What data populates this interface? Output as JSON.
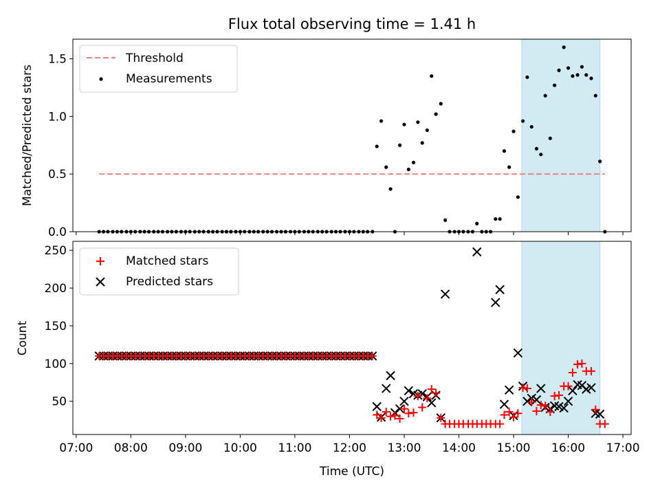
{
  "chart_data": [
    {
      "panel": "top",
      "type": "scatter",
      "title": "Flux total observing time = 1.41 h",
      "ylabel": "Matched/Predicted stars",
      "xlabel": "",
      "xlim": [
        6.94,
        17.15
      ],
      "ylim": [
        0,
        1.67
      ],
      "yticks": [
        0.0,
        0.5,
        1.0,
        1.5
      ],
      "ytick_labels": [
        "0.0",
        "0.5",
        "1.0",
        "1.5"
      ],
      "shaded_interval": [
        15.15,
        16.58
      ],
      "shade_color": "#add8e6",
      "legend": {
        "placement": "top-left",
        "entries": [
          {
            "label": "Threshold",
            "style": "dashed-line",
            "color": "#f08080"
          },
          {
            "label": "Measurements",
            "style": "dot",
            "color": "#000000"
          }
        ]
      },
      "threshold": {
        "name": "Threshold",
        "y": 0.5,
        "x_range": [
          7.42,
          16.67
        ],
        "color": "#f08080"
      },
      "series": [
        {
          "name": "Measurements",
          "marker": "dot",
          "color": "#000000",
          "points": [
            [
              7.42,
              0
            ],
            [
              7.5,
              0
            ],
            [
              7.58,
              0
            ],
            [
              7.67,
              0
            ],
            [
              7.75,
              0
            ],
            [
              7.83,
              0
            ],
            [
              7.92,
              0
            ],
            [
              8.0,
              0
            ],
            [
              8.08,
              0
            ],
            [
              8.17,
              0
            ],
            [
              8.25,
              0
            ],
            [
              8.33,
              0
            ],
            [
              8.42,
              0
            ],
            [
              8.5,
              0
            ],
            [
              8.58,
              0
            ],
            [
              8.67,
              0
            ],
            [
              8.75,
              0
            ],
            [
              8.83,
              0
            ],
            [
              8.92,
              0
            ],
            [
              9.0,
              0
            ],
            [
              9.08,
              0
            ],
            [
              9.17,
              0
            ],
            [
              9.25,
              0
            ],
            [
              9.33,
              0
            ],
            [
              9.42,
              0
            ],
            [
              9.5,
              0
            ],
            [
              9.58,
              0
            ],
            [
              9.67,
              0
            ],
            [
              9.75,
              0
            ],
            [
              9.83,
              0
            ],
            [
              9.92,
              0
            ],
            [
              10.0,
              0
            ],
            [
              10.08,
              0
            ],
            [
              10.17,
              0
            ],
            [
              10.25,
              0
            ],
            [
              10.33,
              0
            ],
            [
              10.42,
              0
            ],
            [
              10.5,
              0
            ],
            [
              10.58,
              0
            ],
            [
              10.67,
              0
            ],
            [
              10.75,
              0
            ],
            [
              10.83,
              0
            ],
            [
              10.92,
              0
            ],
            [
              11.0,
              0
            ],
            [
              11.08,
              0
            ],
            [
              11.17,
              0
            ],
            [
              11.25,
              0
            ],
            [
              11.33,
              0
            ],
            [
              11.42,
              0
            ],
            [
              11.5,
              0
            ],
            [
              11.58,
              0
            ],
            [
              11.67,
              0
            ],
            [
              11.75,
              0
            ],
            [
              11.83,
              0
            ],
            [
              11.92,
              0
            ],
            [
              12.0,
              0
            ],
            [
              12.08,
              0
            ],
            [
              12.17,
              0
            ],
            [
              12.25,
              0
            ],
            [
              12.33,
              0
            ],
            [
              12.42,
              0
            ],
            [
              12.5,
              0.74
            ],
            [
              12.58,
              0.96
            ],
            [
              12.67,
              0.56
            ],
            [
              12.75,
              0.37
            ],
            [
              12.83,
              0.0
            ],
            [
              12.92,
              0.75
            ],
            [
              13.0,
              0.93
            ],
            [
              13.08,
              0.54
            ],
            [
              13.17,
              0.6
            ],
            [
              13.25,
              0.95
            ],
            [
              13.33,
              0.77
            ],
            [
              13.42,
              0.88
            ],
            [
              13.5,
              1.35
            ],
            [
              13.58,
              1.02
            ],
            [
              13.67,
              1.11
            ],
            [
              13.75,
              0.1
            ],
            [
              13.83,
              0.0
            ],
            [
              13.92,
              0.0
            ],
            [
              14.0,
              0.0
            ],
            [
              14.08,
              0.0
            ],
            [
              14.17,
              0.0
            ],
            [
              14.25,
              0.0
            ],
            [
              14.33,
              0.07
            ],
            [
              14.42,
              0.0
            ],
            [
              14.5,
              0.0
            ],
            [
              14.58,
              0.0
            ],
            [
              14.67,
              0.11
            ],
            [
              14.75,
              0.11
            ],
            [
              14.83,
              0.7
            ],
            [
              14.92,
              0.56
            ],
            [
              15.0,
              0.87
            ],
            [
              15.08,
              0.3
            ],
            [
              15.17,
              0.96
            ],
            [
              15.25,
              1.34
            ],
            [
              15.33,
              0.91
            ],
            [
              15.42,
              0.72
            ],
            [
              15.5,
              0.67
            ],
            [
              15.58,
              1.18
            ],
            [
              15.67,
              0.81
            ],
            [
              15.75,
              1.27
            ],
            [
              15.83,
              1.4
            ],
            [
              15.92,
              1.6
            ],
            [
              16.0,
              1.42
            ],
            [
              16.08,
              1.35
            ],
            [
              16.17,
              1.36
            ],
            [
              16.25,
              1.43
            ],
            [
              16.33,
              1.36
            ],
            [
              16.42,
              1.33
            ],
            [
              16.5,
              1.18
            ],
            [
              16.58,
              0.61
            ],
            [
              16.67,
              0.0
            ]
          ]
        }
      ]
    },
    {
      "panel": "bottom",
      "type": "scatter",
      "title": "",
      "xlabel": "Time (UTC)",
      "ylabel": "Count",
      "xlim": [
        6.94,
        17.15
      ],
      "ylim": [
        6,
        262
      ],
      "yticks": [
        50,
        100,
        150,
        200,
        250
      ],
      "ytick_labels": [
        "50",
        "100",
        "150",
        "200",
        "250"
      ],
      "xticks": [
        7,
        8,
        9,
        10,
        11,
        12,
        13,
        14,
        15,
        16,
        17
      ],
      "xtick_labels": [
        "07:00",
        "08:00",
        "09:00",
        "10:00",
        "11:00",
        "12:00",
        "13:00",
        "14:00",
        "15:00",
        "16:00",
        "17:00"
      ],
      "shaded_interval": [
        15.15,
        16.58
      ],
      "shade_color": "#add8e6",
      "legend": {
        "placement": "top-left",
        "entries": [
          {
            "label": "Matched stars",
            "style": "plus",
            "color": "#ff0000"
          },
          {
            "label": "Predicted stars",
            "style": "cross",
            "color": "#000000"
          }
        ]
      },
      "series": [
        {
          "name": "Matched stars",
          "marker": "plus",
          "color": "#ff0000",
          "flat_run": {
            "x_start": 7.42,
            "x_end": 12.42,
            "step": 0.0833,
            "y": 110
          },
          "points": [
            [
              12.5,
              32
            ],
            [
              12.58,
              28
            ],
            [
              12.67,
              36
            ],
            [
              12.75,
              30
            ],
            [
              12.83,
              31
            ],
            [
              12.92,
              27
            ],
            [
              13.0,
              40
            ],
            [
              13.08,
              34
            ],
            [
              13.17,
              35
            ],
            [
              13.25,
              57
            ],
            [
              13.33,
              42
            ],
            [
              13.42,
              54
            ],
            [
              13.5,
              66
            ],
            [
              13.58,
              61
            ],
            [
              13.67,
              28
            ],
            [
              13.75,
              20
            ],
            [
              13.83,
              20
            ],
            [
              13.92,
              20
            ],
            [
              14.0,
              20
            ],
            [
              14.08,
              20
            ],
            [
              14.17,
              20
            ],
            [
              14.25,
              20
            ],
            [
              14.33,
              20
            ],
            [
              14.42,
              20
            ],
            [
              14.5,
              20
            ],
            [
              14.58,
              20
            ],
            [
              14.67,
              20
            ],
            [
              14.75,
              20
            ],
            [
              14.83,
              32
            ],
            [
              14.92,
              36
            ],
            [
              15.0,
              29
            ],
            [
              15.08,
              34
            ],
            [
              15.17,
              68
            ],
            [
              15.25,
              67
            ],
            [
              15.33,
              49
            ],
            [
              15.42,
              37
            ],
            [
              15.5,
              45
            ],
            [
              15.58,
              44
            ],
            [
              15.67,
              36
            ],
            [
              15.75,
              57
            ],
            [
              15.83,
              58
            ],
            [
              15.92,
              70
            ],
            [
              16.0,
              70
            ],
            [
              16.08,
              88
            ],
            [
              16.17,
              99
            ],
            [
              16.25,
              100
            ],
            [
              16.33,
              90
            ],
            [
              16.42,
              90
            ],
            [
              16.5,
              39
            ],
            [
              16.58,
              20
            ],
            [
              16.67,
              20
            ]
          ]
        },
        {
          "name": "Predicted stars",
          "marker": "cross",
          "color": "#000000",
          "points": [
            [
              12.5,
              43
            ],
            [
              12.58,
              29
            ],
            [
              12.67,
              67
            ],
            [
              12.75,
              84
            ],
            [
              12.83,
              35
            ],
            [
              12.92,
              40
            ],
            [
              13.0,
              50
            ],
            [
              13.08,
              64
            ],
            [
              13.17,
              60
            ],
            [
              13.25,
              58
            ],
            [
              13.33,
              60
            ],
            [
              13.42,
              56
            ],
            [
              13.5,
              48
            ],
            [
              13.58,
              58
            ],
            [
              13.67,
              28
            ],
            [
              13.75,
              192
            ],
            [
              14.33,
              248
            ],
            [
              14.67,
              181
            ],
            [
              14.75,
              198
            ],
            [
              14.83,
              46
            ],
            [
              14.92,
              65
            ],
            [
              15.0,
              31
            ],
            [
              15.08,
              114
            ],
            [
              15.17,
              70
            ],
            [
              15.25,
              50
            ],
            [
              15.33,
              54
            ],
            [
              15.42,
              52
            ],
            [
              15.5,
              67
            ],
            [
              15.58,
              42
            ],
            [
              15.67,
              40
            ],
            [
              15.75,
              44
            ],
            [
              15.83,
              43
            ],
            [
              15.92,
              41
            ],
            [
              16.0,
              50
            ],
            [
              16.08,
              64
            ],
            [
              16.17,
              72
            ],
            [
              16.25,
              71
            ],
            [
              16.33,
              66
            ],
            [
              16.42,
              68
            ],
            [
              16.5,
              34
            ],
            [
              16.58,
              33
            ]
          ]
        }
      ]
    }
  ]
}
